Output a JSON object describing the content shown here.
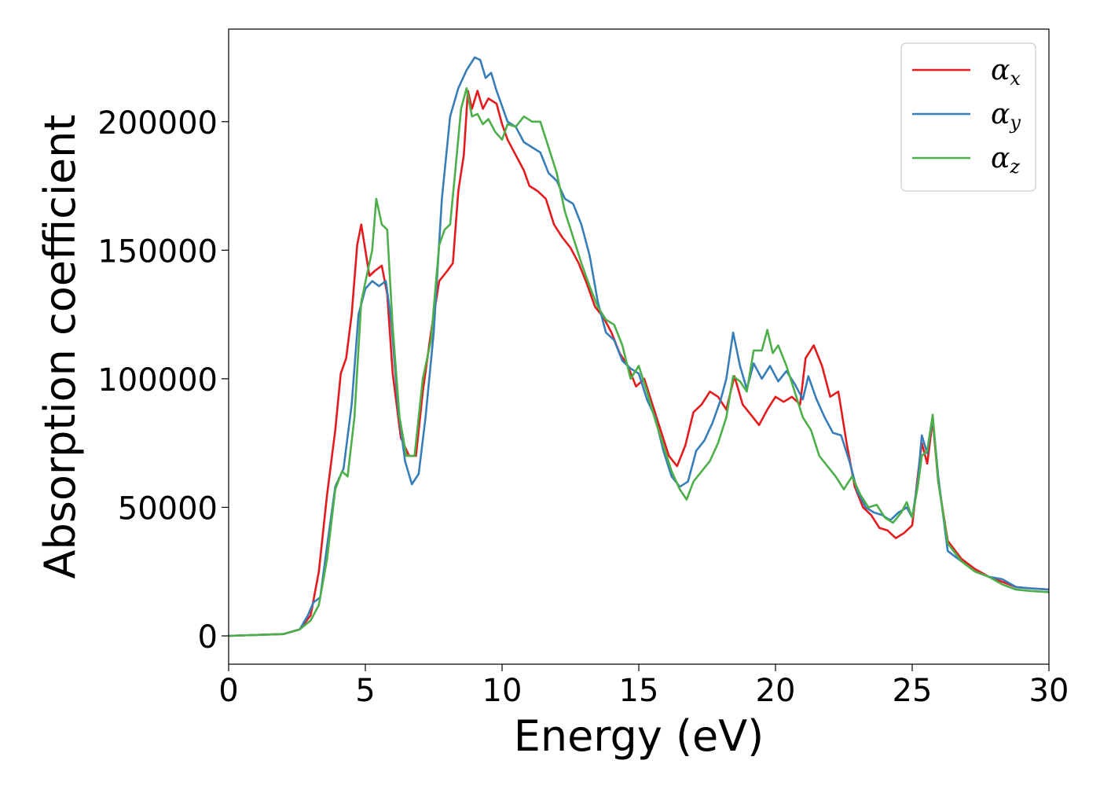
{
  "chart_data": {
    "type": "line",
    "xlabel": "Energy (eV)",
    "ylabel": "Absorption coefficient",
    "xlim": [
      0,
      30
    ],
    "ylim": [
      -11000,
      236000
    ],
    "x_ticks": [
      0,
      5,
      10,
      15,
      20,
      25,
      30
    ],
    "y_ticks": [
      0,
      50000,
      100000,
      150000,
      200000
    ],
    "grid": false,
    "legend_position": "top-right",
    "series": [
      {
        "name": "α",
        "subscript": "x",
        "color": "#e41a1c",
        "points": [
          [
            0,
            0
          ],
          [
            2,
            700
          ],
          [
            2.6,
            2500
          ],
          [
            3,
            8000
          ],
          [
            3.3,
            25000
          ],
          [
            3.6,
            55000
          ],
          [
            3.9,
            80000
          ],
          [
            4.1,
            102000
          ],
          [
            4.3,
            108000
          ],
          [
            4.5,
            125000
          ],
          [
            4.7,
            152000
          ],
          [
            4.85,
            160000
          ],
          [
            5.0,
            150000
          ],
          [
            5.15,
            140000
          ],
          [
            5.35,
            142000
          ],
          [
            5.6,
            144000
          ],
          [
            5.8,
            133000
          ],
          [
            6.0,
            102000
          ],
          [
            6.3,
            77000
          ],
          [
            6.6,
            70000
          ],
          [
            6.85,
            70000
          ],
          [
            7.1,
            95000
          ],
          [
            7.4,
            118000
          ],
          [
            7.7,
            138000
          ],
          [
            8.0,
            142000
          ],
          [
            8.2,
            145000
          ],
          [
            8.4,
            173000
          ],
          [
            8.6,
            187000
          ],
          [
            8.75,
            212000
          ],
          [
            8.9,
            205000
          ],
          [
            9.1,
            212000
          ],
          [
            9.3,
            205000
          ],
          [
            9.5,
            209000
          ],
          [
            9.8,
            207000
          ],
          [
            10.0,
            199000
          ],
          [
            10.2,
            193000
          ],
          [
            10.5,
            187000
          ],
          [
            10.8,
            181000
          ],
          [
            11.0,
            175000
          ],
          [
            11.3,
            173000
          ],
          [
            11.6,
            170000
          ],
          [
            11.9,
            160000
          ],
          [
            12.2,
            155000
          ],
          [
            12.5,
            151000
          ],
          [
            12.8,
            145000
          ],
          [
            13.1,
            137000
          ],
          [
            13.4,
            128000
          ],
          [
            13.7,
            124000
          ],
          [
            14.0,
            118000
          ],
          [
            14.3,
            110000
          ],
          [
            14.6,
            105000
          ],
          [
            14.9,
            97000
          ],
          [
            15.2,
            100000
          ],
          [
            15.5,
            90000
          ],
          [
            15.8,
            80000
          ],
          [
            16.1,
            70000
          ],
          [
            16.4,
            66000
          ],
          [
            16.7,
            74000
          ],
          [
            17.0,
            87000
          ],
          [
            17.3,
            90000
          ],
          [
            17.6,
            95000
          ],
          [
            17.9,
            93000
          ],
          [
            18.2,
            88000
          ],
          [
            18.5,
            101000
          ],
          [
            18.8,
            90000
          ],
          [
            19.1,
            86000
          ],
          [
            19.4,
            82000
          ],
          [
            19.7,
            88000
          ],
          [
            20.0,
            93000
          ],
          [
            20.3,
            91000
          ],
          [
            20.6,
            93000
          ],
          [
            20.9,
            90000
          ],
          [
            21.1,
            108000
          ],
          [
            21.4,
            113000
          ],
          [
            21.7,
            105000
          ],
          [
            22.0,
            93000
          ],
          [
            22.3,
            95000
          ],
          [
            22.6,
            75000
          ],
          [
            22.9,
            58000
          ],
          [
            23.2,
            50000
          ],
          [
            23.5,
            47000
          ],
          [
            23.8,
            42000
          ],
          [
            24.1,
            41000
          ],
          [
            24.4,
            38000
          ],
          [
            24.7,
            40000
          ],
          [
            25.0,
            43000
          ],
          [
            25.2,
            62000
          ],
          [
            25.35,
            75000
          ],
          [
            25.55,
            67000
          ],
          [
            25.75,
            84000
          ],
          [
            25.95,
            60000
          ],
          [
            26.3,
            37000
          ],
          [
            26.8,
            30000
          ],
          [
            27.3,
            26000
          ],
          [
            27.8,
            23000
          ],
          [
            28.3,
            21000
          ],
          [
            28.8,
            19000
          ],
          [
            29.3,
            18500
          ],
          [
            30,
            18000
          ]
        ]
      },
      {
        "name": "α",
        "subscript": "y",
        "color": "#377eb8",
        "points": [
          [
            0,
            0
          ],
          [
            2,
            700
          ],
          [
            2.6,
            2500
          ],
          [
            2.9,
            8000
          ],
          [
            3.1,
            13000
          ],
          [
            3.35,
            15000
          ],
          [
            3.6,
            35000
          ],
          [
            3.9,
            58000
          ],
          [
            4.2,
            65000
          ],
          [
            4.5,
            90000
          ],
          [
            4.75,
            125000
          ],
          [
            5.0,
            135000
          ],
          [
            5.25,
            138000
          ],
          [
            5.5,
            136000
          ],
          [
            5.75,
            138000
          ],
          [
            5.95,
            122000
          ],
          [
            6.2,
            88000
          ],
          [
            6.45,
            68000
          ],
          [
            6.7,
            59000
          ],
          [
            6.95,
            63000
          ],
          [
            7.2,
            85000
          ],
          [
            7.5,
            118000
          ],
          [
            7.8,
            170000
          ],
          [
            8.1,
            202000
          ],
          [
            8.4,
            213000
          ],
          [
            8.7,
            220000
          ],
          [
            9.0,
            225000
          ],
          [
            9.2,
            224000
          ],
          [
            9.4,
            217000
          ],
          [
            9.6,
            219000
          ],
          [
            9.8,
            212000
          ],
          [
            10.0,
            206000
          ],
          [
            10.2,
            200000
          ],
          [
            10.5,
            198000
          ],
          [
            10.8,
            192000
          ],
          [
            11.1,
            190000
          ],
          [
            11.4,
            188000
          ],
          [
            11.7,
            180000
          ],
          [
            12.0,
            177000
          ],
          [
            12.3,
            170000
          ],
          [
            12.6,
            168000
          ],
          [
            12.9,
            160000
          ],
          [
            13.2,
            148000
          ],
          [
            13.5,
            130000
          ],
          [
            13.8,
            118000
          ],
          [
            14.1,
            115000
          ],
          [
            14.4,
            107000
          ],
          [
            14.7,
            104000
          ],
          [
            15.0,
            102000
          ],
          [
            15.3,
            92000
          ],
          [
            15.6,
            85000
          ],
          [
            15.9,
            72000
          ],
          [
            16.2,
            62000
          ],
          [
            16.5,
            58000
          ],
          [
            16.8,
            60000
          ],
          [
            17.1,
            72000
          ],
          [
            17.4,
            76000
          ],
          [
            17.7,
            83000
          ],
          [
            18.0,
            92000
          ],
          [
            18.2,
            100000
          ],
          [
            18.45,
            118000
          ],
          [
            18.7,
            105000
          ],
          [
            18.95,
            96000
          ],
          [
            19.2,
            106000
          ],
          [
            19.5,
            100000
          ],
          [
            19.8,
            105000
          ],
          [
            20.1,
            99000
          ],
          [
            20.4,
            103000
          ],
          [
            20.7,
            98000
          ],
          [
            21.0,
            92000
          ],
          [
            21.2,
            101000
          ],
          [
            21.5,
            92000
          ],
          [
            21.8,
            85000
          ],
          [
            22.1,
            79000
          ],
          [
            22.4,
            78000
          ],
          [
            22.7,
            68000
          ],
          [
            23.0,
            56000
          ],
          [
            23.3,
            50000
          ],
          [
            23.6,
            48000
          ],
          [
            23.9,
            47000
          ],
          [
            24.2,
            45000
          ],
          [
            24.5,
            48000
          ],
          [
            24.8,
            50000
          ],
          [
            25.0,
            46000
          ],
          [
            25.2,
            60000
          ],
          [
            25.35,
            78000
          ],
          [
            25.55,
            71000
          ],
          [
            25.75,
            85000
          ],
          [
            25.95,
            62000
          ],
          [
            26.3,
            33000
          ],
          [
            26.8,
            29000
          ],
          [
            27.3,
            25000
          ],
          [
            27.8,
            23000
          ],
          [
            28.3,
            22000
          ],
          [
            28.8,
            19000
          ],
          [
            29.3,
            18500
          ],
          [
            30,
            18000
          ]
        ]
      },
      {
        "name": "α",
        "subscript": "z",
        "color": "#4daf4a",
        "points": [
          [
            0,
            0
          ],
          [
            2,
            700
          ],
          [
            2.6,
            2500
          ],
          [
            3,
            6000
          ],
          [
            3.3,
            12000
          ],
          [
            3.6,
            30000
          ],
          [
            3.9,
            57000
          ],
          [
            4.15,
            64000
          ],
          [
            4.35,
            62000
          ],
          [
            4.6,
            85000
          ],
          [
            4.85,
            130000
          ],
          [
            5.05,
            140000
          ],
          [
            5.25,
            150000
          ],
          [
            5.4,
            170000
          ],
          [
            5.6,
            160000
          ],
          [
            5.8,
            158000
          ],
          [
            6.0,
            120000
          ],
          [
            6.25,
            85000
          ],
          [
            6.5,
            70000
          ],
          [
            6.8,
            70000
          ],
          [
            7.1,
            100000
          ],
          [
            7.4,
            115000
          ],
          [
            7.7,
            152000
          ],
          [
            7.9,
            158000
          ],
          [
            8.1,
            160000
          ],
          [
            8.3,
            182000
          ],
          [
            8.5,
            205000
          ],
          [
            8.7,
            213000
          ],
          [
            8.9,
            202000
          ],
          [
            9.1,
            203000
          ],
          [
            9.3,
            199000
          ],
          [
            9.5,
            201000
          ],
          [
            9.75,
            196000
          ],
          [
            10.0,
            193000
          ],
          [
            10.2,
            199000
          ],
          [
            10.5,
            198000
          ],
          [
            10.8,
            202000
          ],
          [
            11.1,
            200000
          ],
          [
            11.4,
            200000
          ],
          [
            11.7,
            190000
          ],
          [
            12.0,
            180000
          ],
          [
            12.3,
            165000
          ],
          [
            12.6,
            155000
          ],
          [
            12.9,
            145000
          ],
          [
            13.2,
            136000
          ],
          [
            13.5,
            128000
          ],
          [
            13.8,
            123000
          ],
          [
            14.1,
            121000
          ],
          [
            14.4,
            113000
          ],
          [
            14.7,
            100000
          ],
          [
            15.0,
            105000
          ],
          [
            15.3,
            95000
          ],
          [
            15.6,
            84000
          ],
          [
            15.9,
            74000
          ],
          [
            16.2,
            64000
          ],
          [
            16.5,
            57000
          ],
          [
            16.75,
            53000
          ],
          [
            17.0,
            60000
          ],
          [
            17.3,
            64000
          ],
          [
            17.6,
            68000
          ],
          [
            17.9,
            75000
          ],
          [
            18.2,
            85000
          ],
          [
            18.45,
            101000
          ],
          [
            18.7,
            99000
          ],
          [
            18.95,
            95000
          ],
          [
            19.2,
            111000
          ],
          [
            19.5,
            111000
          ],
          [
            19.7,
            119000
          ],
          [
            19.9,
            110000
          ],
          [
            20.1,
            113000
          ],
          [
            20.4,
            105000
          ],
          [
            20.7,
            95000
          ],
          [
            21.0,
            85000
          ],
          [
            21.3,
            80000
          ],
          [
            21.6,
            70000
          ],
          [
            21.9,
            66000
          ],
          [
            22.2,
            62000
          ],
          [
            22.5,
            57000
          ],
          [
            22.8,
            62000
          ],
          [
            23.1,
            55000
          ],
          [
            23.4,
            50000
          ],
          [
            23.7,
            51000
          ],
          [
            24.0,
            46000
          ],
          [
            24.3,
            44000
          ],
          [
            24.6,
            48000
          ],
          [
            24.8,
            52000
          ],
          [
            25.0,
            46000
          ],
          [
            25.2,
            58000
          ],
          [
            25.35,
            70000
          ],
          [
            25.55,
            72000
          ],
          [
            25.75,
            86000
          ],
          [
            25.95,
            60000
          ],
          [
            26.3,
            36000
          ],
          [
            26.8,
            29000
          ],
          [
            27.3,
            25000
          ],
          [
            27.8,
            23000
          ],
          [
            28.3,
            20000
          ],
          [
            28.8,
            18000
          ],
          [
            29.3,
            17500
          ],
          [
            30,
            17000
          ]
        ]
      }
    ]
  }
}
